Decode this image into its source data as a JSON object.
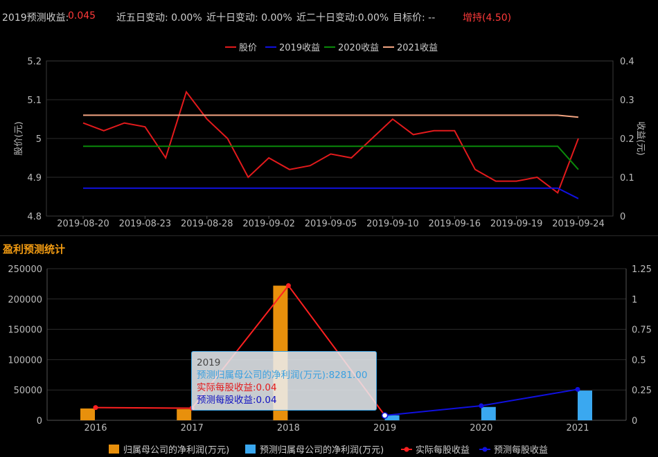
{
  "header": {
    "forecast_label": "2019预测收益:",
    "forecast_value": "0.045",
    "chg5": "近五日变动: 0.00%",
    "chg10": "近十日变动: 0.00%",
    "chg20": "近二十日变动:0.00%",
    "target": "目标价: --",
    "rating": "增持(4.50)"
  },
  "section_title": "盈利预测统计",
  "tooltip": {
    "year": "2019",
    "line1": "预测归属母公司的净利润(万元):8281.00",
    "line2": "实际每股收益:0.04",
    "line3": "预测每股收益:0.04"
  },
  "colors": {
    "price": "#e31a1c",
    "eps2019": "#1010e0",
    "eps2020": "#0a8a0a",
    "eps2021": "#f4a582",
    "profit_actual": "#e8900c",
    "profit_forecast": "#3aa8f0",
    "eps_actual": "#ff2020",
    "eps_forecast": "#1010e0"
  },
  "chart_data": [
    {
      "type": "line",
      "x": [
        "2019-08-20",
        "2019-08-21",
        "2019-08-22",
        "2019-08-23",
        "2019-08-26",
        "2019-08-27",
        "2019-08-28",
        "2019-08-29",
        "2019-08-30",
        "2019-09-02",
        "2019-09-03",
        "2019-09-04",
        "2019-09-05",
        "2019-09-06",
        "2019-09-09",
        "2019-09-10",
        "2019-09-11",
        "2019-09-12",
        "2019-09-16",
        "2019-09-17",
        "2019-09-18",
        "2019-09-19",
        "2019-09-20",
        "2019-09-23",
        "2019-09-24"
      ],
      "x_tick_labels": [
        "2019-08-20",
        "2019-08-23",
        "2019-08-28",
        "2019-09-02",
        "2019-09-05",
        "2019-09-10",
        "2019-09-16",
        "2019-09-19",
        "2019-09-24"
      ],
      "ylabel": "股价(元)",
      "y2label": "收益(元)",
      "ylim": [
        4.8,
        5.2
      ],
      "yticks": [
        "4.8",
        "4.9",
        "5",
        "5.1",
        "5.2"
      ],
      "y2lim": [
        0,
        0.4
      ],
      "y2ticks": [
        "0",
        "0.1",
        "0.2",
        "0.3",
        "0.4"
      ],
      "legend": [
        "股价",
        "2019收益",
        "2020收益",
        "2021收益"
      ],
      "series": [
        {
          "name": "股价",
          "axis": "left",
          "values": [
            5.04,
            5.02,
            5.04,
            5.03,
            4.95,
            5.12,
            5.05,
            5.0,
            4.9,
            4.95,
            4.92,
            4.93,
            4.96,
            4.95,
            5.0,
            5.05,
            5.01,
            5.02,
            5.02,
            4.92,
            4.89,
            4.89,
            4.9,
            4.86,
            5.0
          ]
        },
        {
          "name": "2019收益",
          "axis": "right",
          "values": [
            0.072,
            0.072,
            0.072,
            0.072,
            0.072,
            0.072,
            0.072,
            0.072,
            0.072,
            0.072,
            0.072,
            0.072,
            0.072,
            0.072,
            0.072,
            0.072,
            0.072,
            0.072,
            0.072,
            0.072,
            0.072,
            0.072,
            0.072,
            0.072,
            0.045
          ]
        },
        {
          "name": "2020收益",
          "axis": "right",
          "values": [
            0.18,
            0.18,
            0.18,
            0.18,
            0.18,
            0.18,
            0.18,
            0.18,
            0.18,
            0.18,
            0.18,
            0.18,
            0.18,
            0.18,
            0.18,
            0.18,
            0.18,
            0.18,
            0.18,
            0.18,
            0.18,
            0.18,
            0.18,
            0.18,
            0.12
          ]
        },
        {
          "name": "2021收益",
          "axis": "right",
          "values": [
            0.26,
            0.26,
            0.26,
            0.26,
            0.26,
            0.26,
            0.26,
            0.26,
            0.26,
            0.26,
            0.26,
            0.26,
            0.26,
            0.26,
            0.26,
            0.26,
            0.26,
            0.26,
            0.26,
            0.26,
            0.26,
            0.26,
            0.26,
            0.26,
            0.255
          ]
        }
      ],
      "grid": true,
      "legend_position": "top-center"
    },
    {
      "type": "bar",
      "categories": [
        "2016",
        "2017",
        "2018",
        "2019",
        "2020",
        "2021"
      ],
      "ylim": [
        0,
        250000
      ],
      "yticks": [
        "0",
        "50000",
        "100000",
        "150000",
        "200000",
        "250000"
      ],
      "y2lim": [
        0,
        1.25
      ],
      "y2ticks": [
        "0",
        "0.25",
        "0.5",
        "0.75",
        "1",
        "1.25"
      ],
      "legend": [
        "归属母公司的净利润(万元)",
        "预测归属母公司的净利润(万元)",
        "实际每股收益",
        "预测每股收益"
      ],
      "series": [
        {
          "name": "归属母公司的净利润(万元)",
          "kind": "bar",
          "axis": "left",
          "values": [
            19500,
            18500,
            222000,
            null,
            null,
            null
          ]
        },
        {
          "name": "预测归属母公司的净利润(万元)",
          "kind": "bar",
          "axis": "left",
          "values": [
            null,
            null,
            null,
            8281,
            22000,
            49000
          ]
        },
        {
          "name": "实际每股收益",
          "kind": "line",
          "axis": "right",
          "values": [
            0.105,
            0.1,
            1.11,
            0.04,
            null,
            null
          ]
        },
        {
          "name": "预测每股收益",
          "kind": "line",
          "axis": "right",
          "values": [
            null,
            null,
            null,
            0.04,
            0.12,
            0.255
          ]
        }
      ],
      "grid": true,
      "legend_position": "bottom-center"
    }
  ]
}
